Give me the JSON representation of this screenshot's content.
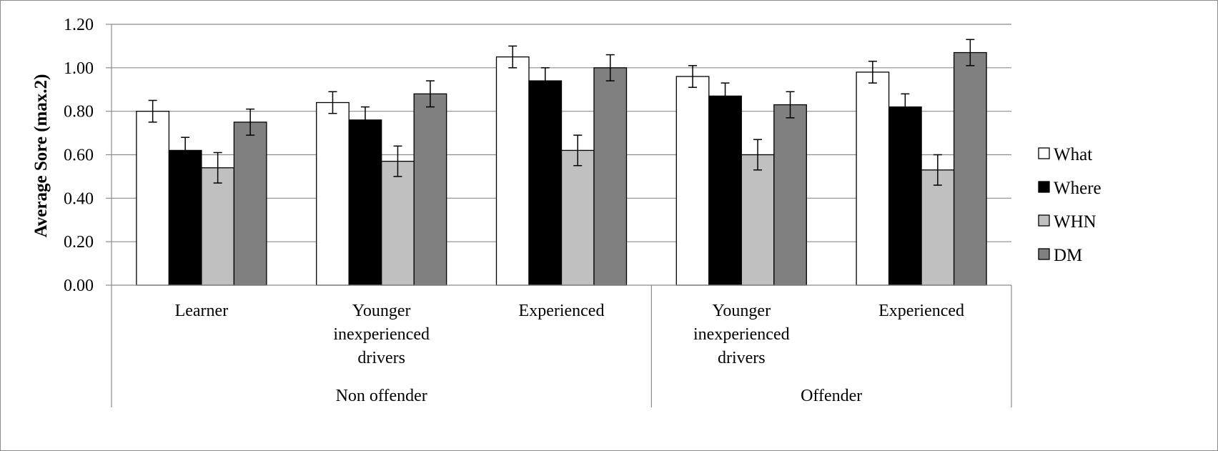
{
  "chart_data": {
    "type": "bar",
    "title": "",
    "xlabel": "",
    "ylabel": "Average Sore (max.2)",
    "ylim": [
      0,
      1.2
    ],
    "yticks": [
      "0.00",
      "0.20",
      "0.40",
      "0.60",
      "0.80",
      "1.00",
      "1.20"
    ],
    "grid": true,
    "legend_position": "right",
    "groups": [
      {
        "label": "Non offender",
        "categories": [
          "Learner",
          "Younger inexperienced drivers",
          "Experienced"
        ]
      },
      {
        "label": "Offender",
        "categories": [
          "Younger inexperienced drivers",
          "Experienced"
        ]
      }
    ],
    "categories": [
      [
        "Learner"
      ],
      [
        "Younger",
        "inexperienced",
        "drivers"
      ],
      [
        "Experienced"
      ],
      [
        "Younger",
        "inexperienced",
        "drivers"
      ],
      [
        "Experienced"
      ]
    ],
    "series": [
      {
        "name": "What",
        "color": "#ffffff",
        "values": [
          0.8,
          0.84,
          1.05,
          0.96,
          0.98
        ],
        "errors": [
          0.05,
          0.05,
          0.05,
          0.05,
          0.05
        ]
      },
      {
        "name": "Where",
        "color": "#000000",
        "values": [
          0.62,
          0.76,
          0.94,
          0.87,
          0.82
        ],
        "errors": [
          0.06,
          0.06,
          0.06,
          0.06,
          0.06
        ]
      },
      {
        "name": "WHN",
        "color": "#c0c0c0",
        "values": [
          0.54,
          0.57,
          0.62,
          0.6,
          0.53
        ],
        "errors": [
          0.07,
          0.07,
          0.07,
          0.07,
          0.07
        ]
      },
      {
        "name": "DM",
        "color": "#808080",
        "values": [
          0.75,
          0.88,
          1.0,
          0.83,
          1.07
        ],
        "errors": [
          0.06,
          0.06,
          0.06,
          0.06,
          0.06
        ]
      }
    ]
  }
}
